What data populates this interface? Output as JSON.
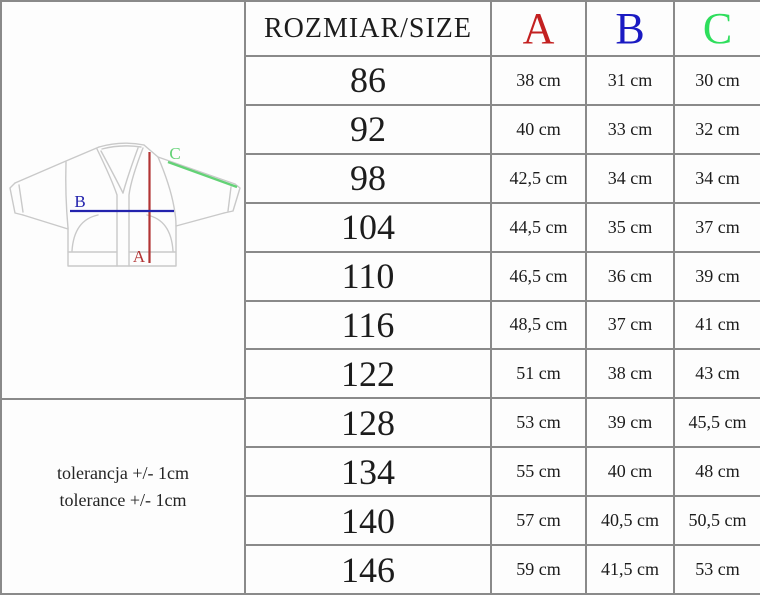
{
  "chart_data": {
    "type": "table",
    "columns": [
      {
        "label": "ROZMIAR/SIZE",
        "color": "#1c1c1c"
      },
      {
        "label": "A",
        "color": "#c32020"
      },
      {
        "label": "B",
        "color": "#1a1ac2"
      },
      {
        "label": "C",
        "color": "#2ede5c"
      }
    ],
    "rows": [
      [
        "86",
        "38 cm",
        "31 cm",
        "30 cm"
      ],
      [
        "92",
        "40 cm",
        "33 cm",
        "32 cm"
      ],
      [
        "98",
        "42,5 cm",
        "34 cm",
        "34 cm"
      ],
      [
        "104",
        "44,5 cm",
        "35 cm",
        "37 cm"
      ],
      [
        "110",
        "46,5 cm",
        "36 cm",
        "39 cm"
      ],
      [
        "116",
        "48,5 cm",
        "37 cm",
        "41 cm"
      ],
      [
        "122",
        "51 cm",
        "38 cm",
        "43 cm"
      ],
      [
        "128",
        "53 cm",
        "39 cm",
        "45,5 cm"
      ],
      [
        "134",
        "55 cm",
        "40 cm",
        "48 cm"
      ],
      [
        "140",
        "57 cm",
        "40,5 cm",
        "50,5 cm"
      ],
      [
        "146",
        "59 cm",
        "41,5 cm",
        "53 cm"
      ]
    ],
    "notes": [
      "tolerancja +/- 1cm",
      "tolerance +/- 1cm"
    ]
  },
  "diagram": {
    "label_a": "A",
    "label_b": "B",
    "label_c": "C",
    "line_a_color": "#b23535",
    "line_b_color": "#2323ad",
    "line_c_color": "#63d276",
    "outline_color": "#c9c9c9"
  }
}
